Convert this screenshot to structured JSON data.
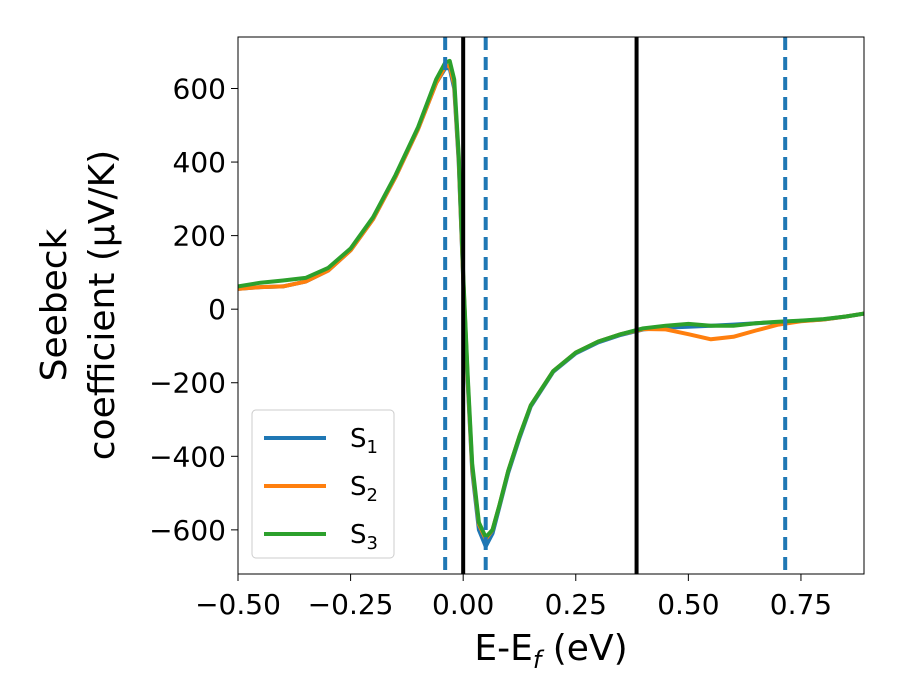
{
  "chart_data": {
    "type": "line",
    "xlabel": "E-E",
    "xlabel_sub": "f",
    "xlabel_unit": " (eV)",
    "ylabel_line1": "Seebeck",
    "ylabel_line2": "coefficient  (μV/K)",
    "xlim": [
      -0.5,
      0.89
    ],
    "ylim": [
      -720,
      740
    ],
    "xticks": [
      -0.5,
      -0.25,
      0.0,
      0.25,
      0.5,
      0.75
    ],
    "xtick_labels": [
      "−0.50",
      "−0.25",
      "0.00",
      "0.25",
      "0.50",
      "0.75"
    ],
    "yticks": [
      -600,
      -400,
      -200,
      0,
      200,
      400,
      600
    ],
    "ytick_labels": [
      "−600",
      "−400",
      "−200",
      "0",
      "200",
      "400",
      "600"
    ],
    "grid": false,
    "legend_position": "lower-left",
    "series": [
      {
        "name": "S",
        "sub": "1",
        "color": "#1f77b4",
        "points": [
          [
            -0.5,
            55
          ],
          [
            -0.45,
            60
          ],
          [
            -0.4,
            62
          ],
          [
            -0.35,
            75
          ],
          [
            -0.3,
            105
          ],
          [
            -0.25,
            160
          ],
          [
            -0.2,
            245
          ],
          [
            -0.15,
            360
          ],
          [
            -0.1,
            490
          ],
          [
            -0.06,
            615
          ],
          [
            -0.04,
            655
          ],
          [
            -0.03,
            655
          ],
          [
            -0.02,
            600
          ],
          [
            -0.01,
            400
          ],
          [
            0.0,
            80
          ],
          [
            0.01,
            -200
          ],
          [
            0.02,
            -440
          ],
          [
            0.035,
            -600
          ],
          [
            0.05,
            -645
          ],
          [
            0.065,
            -610
          ],
          [
            0.08,
            -540
          ],
          [
            0.1,
            -445
          ],
          [
            0.125,
            -350
          ],
          [
            0.15,
            -265
          ],
          [
            0.2,
            -170
          ],
          [
            0.25,
            -120
          ],
          [
            0.3,
            -90
          ],
          [
            0.35,
            -70
          ],
          [
            0.4,
            -55
          ],
          [
            0.45,
            -50
          ],
          [
            0.5,
            -48
          ],
          [
            0.55,
            -45
          ],
          [
            0.6,
            -42
          ],
          [
            0.65,
            -38
          ],
          [
            0.7,
            -35
          ],
          [
            0.75,
            -32
          ],
          [
            0.8,
            -28
          ],
          [
            0.85,
            -20
          ],
          [
            0.89,
            -12
          ]
        ]
      },
      {
        "name": "S",
        "sub": "2",
        "color": "#ff7f0e",
        "points": [
          [
            -0.5,
            55
          ],
          [
            -0.45,
            60
          ],
          [
            -0.4,
            62
          ],
          [
            -0.35,
            75
          ],
          [
            -0.3,
            105
          ],
          [
            -0.25,
            160
          ],
          [
            -0.2,
            245
          ],
          [
            -0.15,
            360
          ],
          [
            -0.1,
            490
          ],
          [
            -0.06,
            615
          ],
          [
            -0.04,
            660
          ],
          [
            -0.03,
            662
          ],
          [
            -0.02,
            610
          ],
          [
            -0.01,
            410
          ],
          [
            0.0,
            85
          ],
          [
            0.01,
            -190
          ],
          [
            0.02,
            -430
          ],
          [
            0.035,
            -585
          ],
          [
            0.05,
            -625
          ],
          [
            0.065,
            -600
          ],
          [
            0.08,
            -535
          ],
          [
            0.1,
            -440
          ],
          [
            0.125,
            -345
          ],
          [
            0.15,
            -262
          ],
          [
            0.2,
            -168
          ],
          [
            0.25,
            -118
          ],
          [
            0.3,
            -88
          ],
          [
            0.35,
            -68
          ],
          [
            0.4,
            -54
          ],
          [
            0.45,
            -55
          ],
          [
            0.5,
            -68
          ],
          [
            0.55,
            -82
          ],
          [
            0.6,
            -75
          ],
          [
            0.65,
            -58
          ],
          [
            0.7,
            -42
          ],
          [
            0.75,
            -33
          ],
          [
            0.8,
            -28
          ],
          [
            0.85,
            -20
          ],
          [
            0.89,
            -12
          ]
        ]
      },
      {
        "name": "S",
        "sub": "3",
        "color": "#2ca02c",
        "points": [
          [
            -0.5,
            62
          ],
          [
            -0.45,
            72
          ],
          [
            -0.4,
            78
          ],
          [
            -0.35,
            85
          ],
          [
            -0.3,
            112
          ],
          [
            -0.25,
            165
          ],
          [
            -0.2,
            250
          ],
          [
            -0.15,
            365
          ],
          [
            -0.1,
            495
          ],
          [
            -0.06,
            625
          ],
          [
            -0.04,
            670
          ],
          [
            -0.03,
            675
          ],
          [
            -0.02,
            625
          ],
          [
            -0.01,
            420
          ],
          [
            0.0,
            95
          ],
          [
            0.01,
            -180
          ],
          [
            0.02,
            -420
          ],
          [
            0.035,
            -580
          ],
          [
            0.05,
            -620
          ],
          [
            0.065,
            -600
          ],
          [
            0.08,
            -535
          ],
          [
            0.1,
            -440
          ],
          [
            0.125,
            -345
          ],
          [
            0.15,
            -262
          ],
          [
            0.2,
            -168
          ],
          [
            0.25,
            -118
          ],
          [
            0.3,
            -88
          ],
          [
            0.35,
            -68
          ],
          [
            0.4,
            -52
          ],
          [
            0.45,
            -45
          ],
          [
            0.5,
            -40
          ],
          [
            0.55,
            -45
          ],
          [
            0.6,
            -45
          ],
          [
            0.65,
            -38
          ],
          [
            0.7,
            -34
          ],
          [
            0.75,
            -31
          ],
          [
            0.8,
            -27
          ],
          [
            0.85,
            -20
          ],
          [
            0.89,
            -12
          ]
        ]
      }
    ],
    "vlines": [
      {
        "x": -0.04,
        "style": "dashed",
        "color": "#1f77b4"
      },
      {
        "x": 0.0,
        "style": "solid",
        "color": "#000000"
      },
      {
        "x": 0.05,
        "style": "dashed",
        "color": "#1f77b4"
      },
      {
        "x": 0.385,
        "style": "solid",
        "color": "#000000"
      },
      {
        "x": 0.715,
        "style": "dashed",
        "color": "#1f77b4"
      }
    ]
  }
}
